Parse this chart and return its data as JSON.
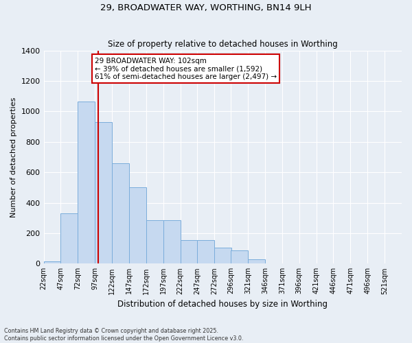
{
  "title": "29, BROADWATER WAY, WORTHING, BN14 9LH",
  "subtitle": "Size of property relative to detached houses in Worthing",
  "xlabel": "Distribution of detached houses by size in Worthing",
  "ylabel": "Number of detached properties",
  "categories": [
    "22sqm",
    "47sqm",
    "72sqm",
    "97sqm",
    "122sqm",
    "147sqm",
    "172sqm",
    "197sqm",
    "222sqm",
    "247sqm",
    "272sqm",
    "296sqm",
    "321sqm",
    "346sqm",
    "371sqm",
    "396sqm",
    "421sqm",
    "446sqm",
    "471sqm",
    "496sqm",
    "521sqm"
  ],
  "values": [
    15,
    330,
    1065,
    930,
    660,
    500,
    285,
    285,
    155,
    155,
    105,
    85,
    30,
    0,
    0,
    0,
    0,
    0,
    0,
    0,
    0
  ],
  "bar_color": "#c6d9f0",
  "bar_edgecolor": "#7aaddb",
  "background_color": "#e8eef5",
  "grid_color": "#ffffff",
  "ylim": [
    0,
    1400
  ],
  "yticks": [
    0,
    200,
    400,
    600,
    800,
    1000,
    1200,
    1400
  ],
  "red_line_color": "#cc0000",
  "property_line_label": "29 BROADWATER WAY: 102sqm",
  "annotation_line1": "← 39% of detached houses are smaller (1,592)",
  "annotation_line2": "61% of semi-detached houses are larger (2,497) →",
  "footer_line1": "Contains HM Land Registry data © Crown copyright and database right 2025.",
  "footer_line2": "Contains public sector information licensed under the Open Government Licence v3.0."
}
